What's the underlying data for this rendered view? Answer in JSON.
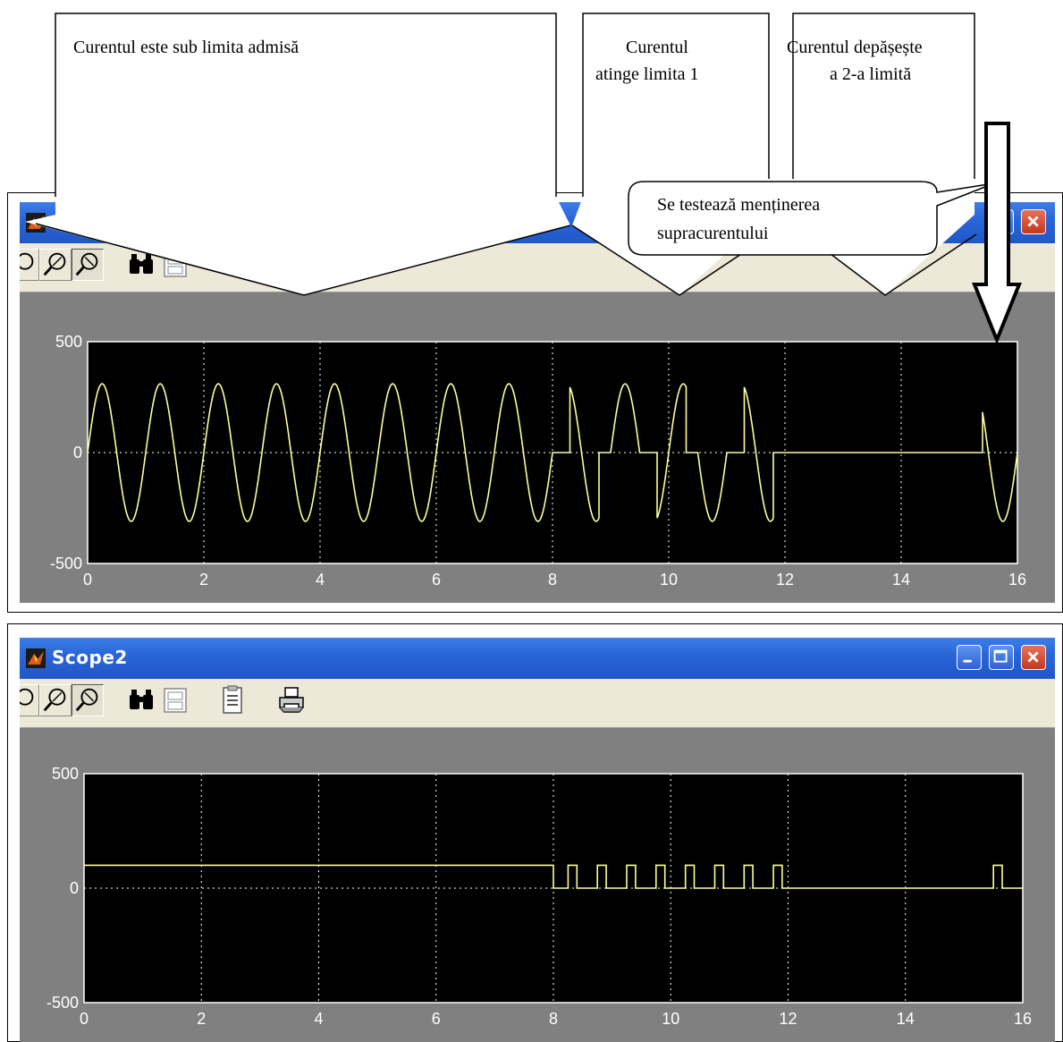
{
  "annotations": {
    "box1": "Curentul este sub limita  admisă",
    "box2_line1": "Curentul",
    "box2_line2": "atinge limita 1",
    "box3_line1": "Curentul depășește",
    "box3_line2": "a 2-a  limită",
    "callout_line1": "Se testează menținerea",
    "callout_line2": "supracurentului"
  },
  "scope1": {
    "title": "",
    "toolbar": [
      "zoom-icon",
      "zoom-x-icon",
      "zoom-y-icon",
      "autoscale-icon",
      "save-axes-icon",
      "parameters-icon",
      "print-icon"
    ]
  },
  "scope2": {
    "title": "Scope2",
    "toolbar": [
      "zoom-icon",
      "zoom-x-icon",
      "zoom-y-icon",
      "autoscale-icon",
      "save-axes-icon",
      "parameters-icon",
      "print-icon"
    ]
  },
  "colors": {
    "trace": "#ffff99",
    "plot_bg": "#000000",
    "frame_bg": "#808080",
    "grid": "#ffffff"
  },
  "chart_data": [
    {
      "type": "line",
      "title": "",
      "xlabel": "",
      "ylabel": "",
      "xlim": [
        0,
        16
      ],
      "ylim": [
        -500,
        500
      ],
      "xticks": [
        "0",
        "2",
        "4",
        "6",
        "8",
        "10",
        "12",
        "14",
        "16"
      ],
      "yticks": [
        "500",
        "0",
        "-500"
      ],
      "grid": true,
      "series": [
        {
          "amplitude": 310,
          "period": 1,
          "x": [
            0,
            8,
            8.3,
            8.5,
            8.8,
            9.0,
            9.3,
            9.5,
            9.8,
            10.0,
            10.3,
            10.5,
            10.8,
            11.0,
            11.3,
            11.5,
            11.8,
            12,
            15.4,
            16
          ],
          "segments": [
            "sine",
            "off",
            "sine",
            "sine",
            "off",
            "sine",
            "sine",
            "off",
            "sine",
            "sine",
            "off",
            "sine",
            "sine",
            "off",
            "sine",
            "sine",
            "off",
            "zero",
            "sine"
          ]
        }
      ]
    },
    {
      "type": "line",
      "title": "",
      "xlabel": "",
      "ylabel": "",
      "xlim": [
        0,
        16
      ],
      "ylim": [
        -500,
        500
      ],
      "xticks": [
        "0",
        "2",
        "4",
        "6",
        "8",
        "10",
        "12",
        "14",
        "16"
      ],
      "yticks": [
        "500",
        "0",
        "-500"
      ],
      "grid": true,
      "series": [
        {
          "x": [
            0,
            8,
            8,
            8.25,
            8.25,
            8.4,
            8.4,
            8.75,
            8.75,
            8.9,
            8.9,
            9.25,
            9.25,
            9.4,
            9.4,
            9.75,
            9.75,
            9.9,
            9.9,
            10.25,
            10.25,
            10.4,
            10.4,
            10.75,
            10.75,
            10.9,
            10.9,
            11.25,
            11.25,
            11.4,
            11.4,
            11.75,
            11.75,
            11.9,
            11.9,
            15.5,
            15.5,
            15.65,
            15.65,
            16
          ],
          "y": [
            100,
            100,
            0,
            0,
            100,
            100,
            0,
            0,
            100,
            100,
            0,
            0,
            100,
            100,
            0,
            0,
            100,
            100,
            0,
            0,
            100,
            100,
            0,
            0,
            100,
            100,
            0,
            0,
            100,
            100,
            0,
            0,
            100,
            100,
            0,
            0,
            100,
            100,
            0,
            0
          ]
        }
      ]
    }
  ]
}
